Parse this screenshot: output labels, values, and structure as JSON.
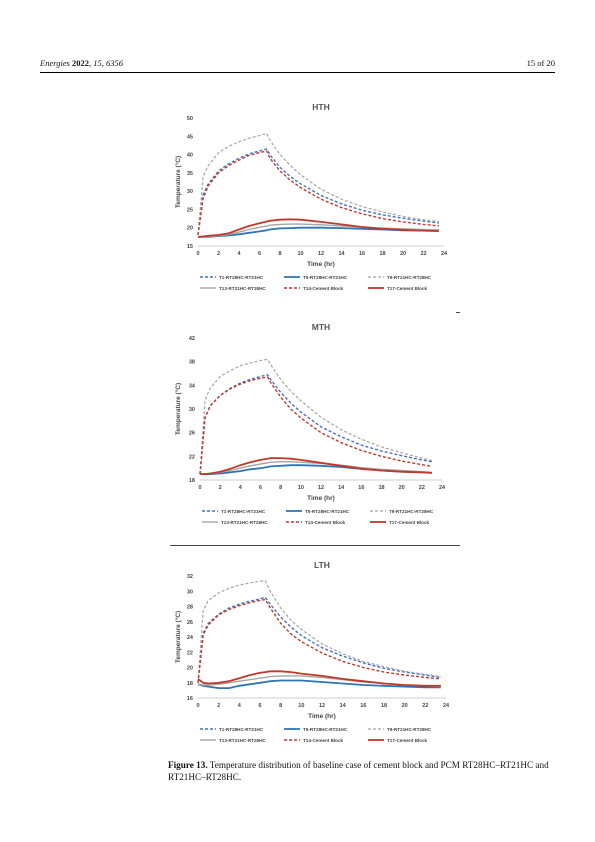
{
  "header": {
    "journal": "Energies",
    "year": "2022",
    "volume": "15",
    "article": "6356",
    "page": "15 of 20"
  },
  "caption": {
    "label": "Figure 13.",
    "text": "Temperature distribution of baseline case of cement block and PCM RT28HC–RT21HC and RT21HC–RT28HC."
  },
  "legend": {
    "entries": [
      {
        "label": "T1-RT28HC-RT21HC",
        "color": "#4472C4",
        "dash": "3,2",
        "width": 1.4
      },
      {
        "label": "T5-RT28HC-RT21HC",
        "color": "#2E75B6",
        "dash": "",
        "width": 1.8
      },
      {
        "label": "T9-RT21HC-RT28HC",
        "color": "#A5A5A5",
        "dash": "3,2",
        "width": 1.2
      },
      {
        "label": "T13-RT21HC-RT28HC",
        "color": "#A5A5A5",
        "dash": "",
        "width": 1.4
      },
      {
        "label": "T14-Cement Block",
        "color": "#C0392B",
        "dash": "3,2",
        "width": 1.4
      },
      {
        "label": "T17-Cement Block",
        "color": "#C0392B",
        "dash": "",
        "width": 1.8
      }
    ]
  },
  "chart_data": [
    {
      "type": "line",
      "title": "HTH",
      "xlabel": "Time (hr)",
      "ylabel": "Temperature (°C)",
      "xlim": [
        0,
        24
      ],
      "ylim": [
        15,
        50
      ],
      "xticks": [
        0,
        2,
        4,
        6,
        8,
        10,
        12,
        14,
        16,
        18,
        20,
        22,
        24
      ],
      "yticks": [
        15,
        20,
        25,
        30,
        35,
        40,
        45,
        50
      ],
      "x": [
        0,
        0.5,
        1,
        2,
        3,
        4,
        5,
        6,
        6.7,
        7,
        8,
        9,
        10,
        12,
        14,
        16,
        18,
        20,
        22,
        23.5
      ],
      "series": [
        {
          "name": "T1-RT28HC-RT21HC",
          "values": [
            18,
            29,
            32,
            35.5,
            37.5,
            39,
            40.2,
            41,
            41.5,
            40,
            36.5,
            34,
            32,
            28.8,
            26.5,
            24.8,
            23.5,
            22.6,
            21.8,
            21.3
          ]
        },
        {
          "name": "T5-RT28HC-RT21HC",
          "values": [
            17.5,
            17.5,
            17.5,
            17.7,
            17.9,
            18.2,
            18.6,
            19,
            19.3,
            19.5,
            19.8,
            19.9,
            20,
            20,
            19.9,
            19.7,
            19.5,
            19.3,
            19.2,
            19.1
          ]
        },
        {
          "name": "T9-RT21HC-RT28HC",
          "values": [
            18,
            34,
            37,
            40.5,
            42.3,
            43.5,
            44.5,
            45.2,
            45.8,
            44,
            40,
            37,
            34.5,
            30.5,
            27.8,
            25.8,
            24.3,
            23.1,
            22.2,
            21.7
          ]
        },
        {
          "name": "T13-RT21HC-RT28HC",
          "values": [
            17.5,
            17.6,
            17.6,
            17.8,
            18.2,
            18.8,
            19.5,
            20.1,
            20.5,
            20.7,
            20.9,
            21,
            21,
            20.8,
            20.5,
            20.2,
            19.9,
            19.7,
            19.5,
            19.4
          ]
        },
        {
          "name": "T14-Cement Block",
          "values": [
            18,
            28,
            31.5,
            35,
            37,
            38.5,
            39.8,
            40.5,
            41,
            39,
            35.5,
            33,
            31,
            27.8,
            25.5,
            23.8,
            22.5,
            21.6,
            20.9,
            20.5
          ]
        },
        {
          "name": "T17-Cement Block",
          "values": [
            17.5,
            17.6,
            17.8,
            18,
            18.5,
            19.5,
            20.5,
            21.2,
            21.7,
            21.9,
            22.2,
            22.3,
            22.2,
            21.6,
            20.9,
            20.2,
            19.7,
            19.4,
            19.2,
            19.1
          ]
        }
      ]
    },
    {
      "type": "line",
      "title": "MTH",
      "xlabel": "Time (hr)",
      "ylabel": "Temperature (°C)",
      "xlim": [
        0,
        24
      ],
      "ylim": [
        18,
        42
      ],
      "xticks": [
        0,
        2,
        4,
        6,
        8,
        10,
        12,
        14,
        16,
        18,
        20,
        22,
        24
      ],
      "yticks": [
        18,
        22,
        26,
        30,
        34,
        38,
        42
      ],
      "x": [
        0,
        0.5,
        1,
        2,
        3,
        4,
        5,
        6,
        6.7,
        7,
        8,
        9,
        10,
        12,
        14,
        16,
        18,
        20,
        22,
        23
      ],
      "series": [
        {
          "name": "T1-RT28HC-RT21HC",
          "values": [
            19,
            28.5,
            30.5,
            32.3,
            33.5,
            34.4,
            35,
            35.5,
            35.8,
            35,
            32.8,
            31,
            29.5,
            27,
            25.3,
            23.9,
            22.9,
            22.1,
            21.4,
            21.1
          ]
        },
        {
          "name": "T5-RT28HC-RT21HC",
          "values": [
            19,
            19,
            19,
            19.1,
            19.3,
            19.5,
            19.8,
            20,
            20.2,
            20.3,
            20.4,
            20.5,
            20.5,
            20.4,
            20.2,
            19.9,
            19.6,
            19.4,
            19.3,
            19.2
          ]
        },
        {
          "name": "T9-RT21HC-RT28HC",
          "values": [
            19,
            31.5,
            33.5,
            35.5,
            36.5,
            37.3,
            37.8,
            38.2,
            38.4,
            37.5,
            35,
            33,
            31.4,
            28.6,
            26.5,
            24.9,
            23.6,
            22.6,
            21.7,
            21.3
          ]
        },
        {
          "name": "T13-RT21HC-RT28HC",
          "values": [
            19,
            19,
            19.1,
            19.3,
            19.6,
            20,
            20.4,
            20.7,
            20.9,
            21,
            21.1,
            21.1,
            21,
            20.8,
            20.5,
            20.1,
            19.8,
            19.6,
            19.4,
            19.3
          ]
        },
        {
          "name": "T14-Cement Block",
          "values": [
            19,
            28.5,
            30.5,
            32.3,
            33.4,
            34.2,
            34.8,
            35.2,
            35.4,
            34.5,
            32,
            30,
            28.5,
            26,
            24.3,
            23,
            22,
            21.2,
            20.6,
            20.3
          ]
        },
        {
          "name": "T17-Cement Block",
          "values": [
            19,
            19,
            19.1,
            19.4,
            19.9,
            20.5,
            21,
            21.4,
            21.6,
            21.7,
            21.7,
            21.6,
            21.4,
            20.9,
            20.4,
            19.9,
            19.6,
            19.4,
            19.3,
            19.2
          ]
        }
      ]
    },
    {
      "type": "line",
      "title": "LTH",
      "xlabel": "Time (hr)",
      "ylabel": "Temperature (°C)",
      "xlim": [
        0,
        24
      ],
      "ylim": [
        16,
        32
      ],
      "xticks": [
        0,
        2,
        4,
        6,
        8,
        10,
        12,
        14,
        16,
        18,
        20,
        22,
        24
      ],
      "yticks": [
        16,
        18,
        20,
        22,
        24,
        26,
        28,
        30,
        32
      ],
      "x": [
        0,
        0.5,
        1,
        2,
        3,
        4,
        5,
        6,
        6.5,
        7,
        8,
        9,
        10,
        12,
        14,
        16,
        18,
        20,
        22,
        23.5
      ],
      "series": [
        {
          "name": "T1-RT28HC-RT21HC",
          "values": [
            18,
            24.5,
            25.8,
            27,
            27.8,
            28.3,
            28.7,
            29,
            29.2,
            28.3,
            26.6,
            25.3,
            24.2,
            22.6,
            21.5,
            20.6,
            19.9,
            19.4,
            19,
            18.7
          ]
        },
        {
          "name": "T5-RT28HC-RT21HC",
          "values": [
            17.8,
            17.6,
            17.5,
            17.3,
            17.3,
            17.6,
            17.8,
            18,
            18.1,
            18.2,
            18.3,
            18.3,
            18.3,
            18.1,
            17.9,
            17.7,
            17.6,
            17.5,
            17.4,
            17.4
          ]
        },
        {
          "name": "T9-RT21HC-RT28HC",
          "values": [
            18,
            27.5,
            28.8,
            29.8,
            30.4,
            30.8,
            31.1,
            31.3,
            31.4,
            30,
            27.8,
            26.2,
            25,
            23.1,
            21.8,
            20.8,
            20.1,
            19.5,
            19.1,
            18.8
          ]
        },
        {
          "name": "T13-RT21HC-RT28HC",
          "values": [
            17.8,
            17.7,
            17.7,
            17.8,
            18,
            18.2,
            18.4,
            18.6,
            18.7,
            18.8,
            18.9,
            18.9,
            18.9,
            18.7,
            18.4,
            18.1,
            17.9,
            17.7,
            17.6,
            17.5
          ]
        },
        {
          "name": "T14-Cement Block",
          "values": [
            18,
            24.3,
            25.6,
            26.9,
            27.6,
            28.1,
            28.5,
            28.8,
            28.9,
            27.8,
            25.8,
            24.4,
            23.4,
            21.9,
            20.8,
            20,
            19.4,
            19,
            18.7,
            18.5
          ]
        },
        {
          "name": "T17-Cement Block",
          "values": [
            18.5,
            18,
            17.9,
            18,
            18.2,
            18.6,
            19,
            19.3,
            19.4,
            19.5,
            19.5,
            19.4,
            19.2,
            18.9,
            18.5,
            18.2,
            17.9,
            17.7,
            17.6,
            17.6
          ]
        }
      ]
    }
  ]
}
